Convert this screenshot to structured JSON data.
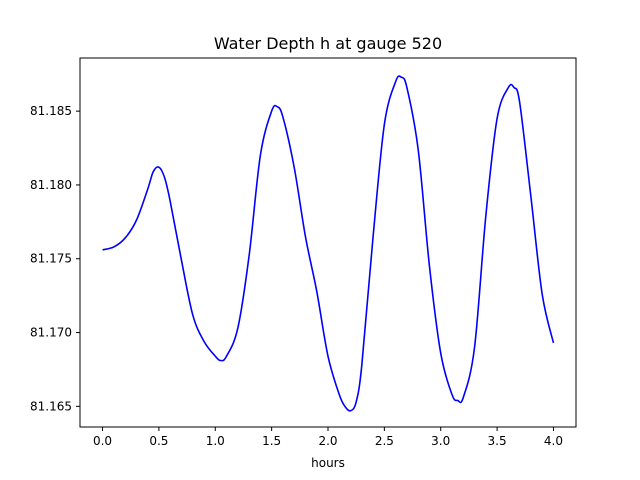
{
  "chart_data": {
    "type": "line",
    "title": "Water Depth h at gauge 520",
    "xlabel": "hours",
    "ylabel": "",
    "xlim": [
      -0.2,
      4.2
    ],
    "ylim": [
      81.1636,
      81.1886
    ],
    "xticks": [
      0.0,
      0.5,
      1.0,
      1.5,
      2.0,
      2.5,
      3.0,
      3.5,
      4.0
    ],
    "xtick_labels": [
      "0.0",
      "0.5",
      "1.0",
      "1.5",
      "2.0",
      "2.5",
      "3.0",
      "3.5",
      "4.0"
    ],
    "yticks": [
      81.165,
      81.17,
      81.175,
      81.18,
      81.185
    ],
    "ytick_labels": [
      "81.165",
      "81.170",
      "81.175",
      "81.180",
      "81.185"
    ],
    "grid": false,
    "series": [
      {
        "color": "#0000ff",
        "x": [
          0.0,
          0.1,
          0.2,
          0.3,
          0.4,
          0.45,
          0.5,
          0.55,
          0.6,
          0.7,
          0.8,
          0.9,
          1.0,
          1.05,
          1.1,
          1.2,
          1.3,
          1.4,
          1.5,
          1.55,
          1.6,
          1.7,
          1.8,
          1.9,
          2.0,
          2.1,
          2.15,
          2.2,
          2.25,
          2.3,
          2.4,
          2.5,
          2.6,
          2.65,
          2.7,
          2.8,
          2.9,
          3.0,
          3.1,
          3.15,
          3.2,
          3.3,
          3.4,
          3.5,
          3.6,
          3.65,
          3.7,
          3.8,
          3.9,
          4.0
        ],
        "y": [
          81.1756,
          81.1758,
          81.1764,
          81.1776,
          81.1797,
          81.1809,
          81.1812,
          81.1805,
          81.1789,
          81.1749,
          81.1712,
          81.1694,
          81.1684,
          81.1681,
          81.1684,
          81.1703,
          81.1752,
          81.182,
          81.185,
          81.1853,
          81.1846,
          81.1812,
          81.1765,
          81.1728,
          81.1684,
          81.1658,
          81.165,
          81.1647,
          81.1653,
          81.1678,
          81.1765,
          81.1841,
          81.187,
          81.1873,
          81.1866,
          81.1824,
          81.1745,
          81.1686,
          81.1658,
          81.1654,
          81.1656,
          81.169,
          81.1779,
          81.1845,
          81.1866,
          81.1866,
          81.1856,
          81.1792,
          81.1726,
          81.1693
        ]
      }
    ]
  }
}
